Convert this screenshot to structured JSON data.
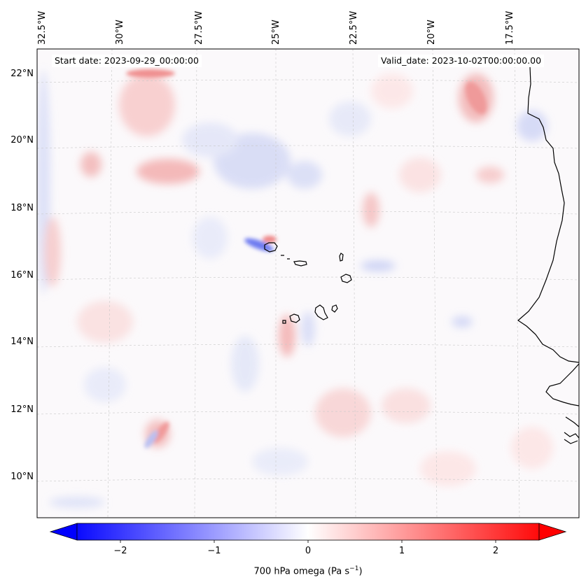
{
  "map": {
    "start_label": "Start date: 2023-09-29_00:00:00",
    "valid_label": "Valid_date: 2023-10-02T00:00:00.00",
    "lon_labels": [
      "32.5°W",
      "30°W",
      "27.5°W",
      "25°W",
      "22.5°W",
      "20°W",
      "17.5°W"
    ],
    "lat_labels": [
      "22°N",
      "20°N",
      "18°N",
      "16°N",
      "14°N",
      "12°N",
      "10°N"
    ],
    "extent": {
      "lon": [
        -32.6,
        -15.7
      ],
      "lat": [
        8.9,
        22.8
      ]
    },
    "gridlines": true
  },
  "colorbar": {
    "ticks": [
      "−2",
      "−1",
      "0",
      "1",
      "2"
    ],
    "tick_values": [
      -2,
      -1,
      0,
      1,
      2
    ],
    "range": [
      -2.5,
      2.5
    ],
    "extend": "both",
    "label": "700 hPa omega (Pa s",
    "label_sup": "−1",
    "label_end": ")",
    "colormap": "bwr",
    "min_color": "#0000ff",
    "mid_color": "#ffffff",
    "max_color": "#ff0000"
  }
}
